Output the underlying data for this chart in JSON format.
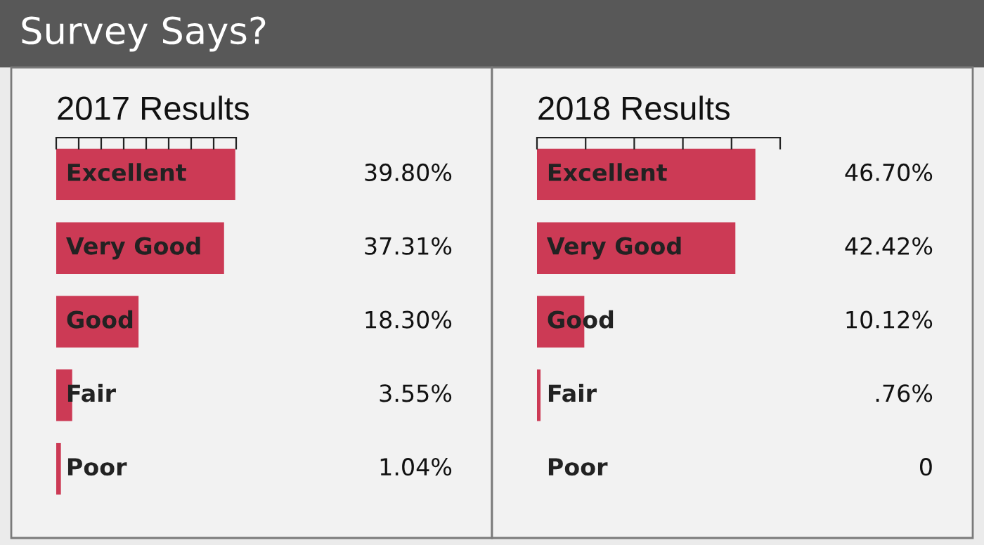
{
  "chart_data": [
    {
      "type": "bar",
      "orientation": "horizontal",
      "title": "Survey Says?",
      "subtitle": "2017 Results",
      "categories": [
        "Excellent",
        "Very Good",
        "Good",
        "Fair",
        "Poor"
      ],
      "values": [
        39.8,
        37.31,
        18.3,
        3.55,
        1.04
      ],
      "value_labels": [
        "39.80%",
        "37.31%",
        "18.30%",
        "3.55%",
        "1.04%"
      ],
      "color": "#cc3a55",
      "xlim": [
        0,
        40
      ],
      "xticks": [
        {
          "value": 0,
          "label": null
        },
        {
          "value": 5,
          "label": null
        },
        {
          "value": 10,
          "label": null
        },
        {
          "value": 15,
          "label": null
        },
        {
          "value": 20,
          "label": null
        },
        {
          "value": 25,
          "label": null
        },
        {
          "value": 30,
          "label": null
        },
        {
          "value": 35,
          "label": null
        },
        {
          "value": 40,
          "label": null
        }
      ],
      "grid": false,
      "legend": false
    },
    {
      "type": "bar",
      "orientation": "horizontal",
      "title": "2018 Results",
      "categories": [
        "Excellent",
        "Very Good",
        "Good",
        "Fair",
        "Poor"
      ],
      "values": [
        46.7,
        42.42,
        10.12,
        0.76,
        0
      ],
      "value_labels": [
        "46.70%",
        "42.42%",
        "10.12%",
        ".76%",
        "0"
      ],
      "color": "#cc3a55",
      "xlim": [
        0,
        52
      ],
      "xticks": [
        {
          "value": 0,
          "label": null
        },
        {
          "value": 10.4,
          "label": null
        },
        {
          "value": 20.8,
          "label": null
        },
        {
          "value": 31.2,
          "label": null
        },
        {
          "value": 41.6,
          "label": null
        },
        {
          "value": 52,
          "label": null
        }
      ],
      "grid": false,
      "legend": false
    }
  ]
}
